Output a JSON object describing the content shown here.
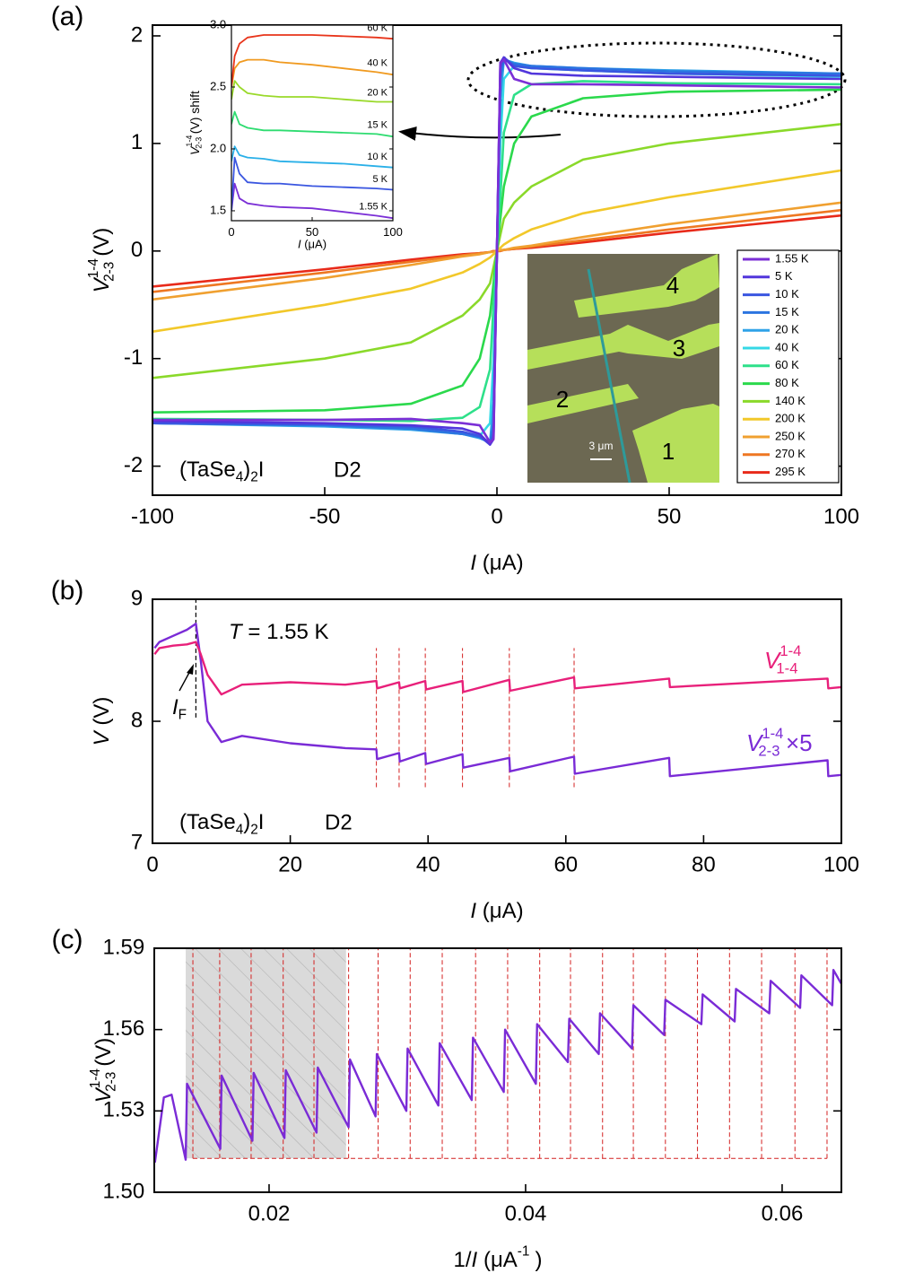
{
  "chart_data": [
    {
      "type": "line",
      "panel_label": "(a)",
      "xlabel": {
        "symbol": "I",
        "unit": "(μA)"
      },
      "ylabel": {
        "symbol": "V",
        "sup": "1-4",
        "sub": "2-3",
        "unit": "(V)"
      },
      "sample": {
        "t1": "(TaSe",
        "sub": "4",
        "t2": ")",
        "sub2": "2",
        "t3": "I"
      },
      "device": "D2",
      "contacts": [
        "1",
        "2",
        "3",
        "4"
      ],
      "scale_bar": "3 μm",
      "xlim": [
        -100,
        100
      ],
      "ylim": [
        -2.27,
        2.1
      ],
      "xticks": [
        -100,
        -50,
        0,
        50,
        100
      ],
      "yticks": [
        -2,
        -1,
        0,
        1,
        2
      ],
      "x": [
        -100,
        -50,
        -25,
        -10,
        -5,
        -2,
        -1,
        0,
        1,
        2,
        5,
        10,
        25,
        50,
        100
      ],
      "series": [
        {
          "name": "1.55 K",
          "color": "#7b2fd6",
          "values": [
            -1.57,
            -1.57,
            -1.56,
            -1.6,
            -1.62,
            -1.78,
            -1.75,
            0,
            1.75,
            1.78,
            1.6,
            1.55,
            1.55,
            1.54,
            1.52
          ]
        },
        {
          "name": "5 K",
          "color": "#5236dc",
          "values": [
            -1.58,
            -1.6,
            -1.62,
            -1.65,
            -1.7,
            -1.8,
            -1.75,
            0,
            1.75,
            1.8,
            1.7,
            1.65,
            1.63,
            1.62,
            1.6
          ]
        },
        {
          "name": "10 K",
          "color": "#3a56e0",
          "values": [
            -1.6,
            -1.61,
            -1.63,
            -1.68,
            -1.72,
            -1.8,
            -1.7,
            0,
            1.7,
            1.8,
            1.72,
            1.7,
            1.68,
            1.65,
            1.63
          ]
        },
        {
          "name": "15 K",
          "color": "#2b74e0",
          "values": [
            -1.6,
            -1.62,
            -1.65,
            -1.7,
            -1.73,
            -1.78,
            -1.6,
            0,
            1.6,
            1.78,
            1.74,
            1.72,
            1.7,
            1.67,
            1.65
          ]
        },
        {
          "name": "20 K",
          "color": "#2fa2e8",
          "values": [
            -1.6,
            -1.63,
            -1.66,
            -1.7,
            -1.74,
            -1.78,
            -1.4,
            0,
            1.4,
            1.78,
            1.75,
            1.72,
            1.7,
            1.68,
            1.65
          ]
        },
        {
          "name": "40 K",
          "color": "#35d8e6",
          "values": [
            -1.6,
            -1.62,
            -1.65,
            -1.7,
            -1.72,
            -1.6,
            -1.0,
            0,
            1.0,
            1.6,
            1.72,
            1.7,
            1.68,
            1.65,
            1.62
          ]
        },
        {
          "name": "60 K",
          "color": "#2ee08a",
          "values": [
            -1.56,
            -1.57,
            -1.58,
            -1.55,
            -1.45,
            -1.1,
            -0.5,
            0,
            0.5,
            1.1,
            1.45,
            1.55,
            1.58,
            1.56,
            1.55
          ]
        },
        {
          "name": "80 K",
          "color": "#2bd94c",
          "values": [
            -1.5,
            -1.48,
            -1.42,
            -1.25,
            -1.0,
            -0.6,
            -0.3,
            0,
            0.3,
            0.6,
            1.0,
            1.25,
            1.42,
            1.48,
            1.5
          ]
        },
        {
          "name": "140 K",
          "color": "#8ad92a",
          "values": [
            -1.18,
            -1.0,
            -0.85,
            -0.6,
            -0.45,
            -0.3,
            -0.15,
            0,
            0.15,
            0.3,
            0.45,
            0.6,
            0.85,
            1.0,
            1.18
          ]
        },
        {
          "name": "200 K",
          "color": "#f2c82a",
          "values": [
            -0.75,
            -0.5,
            -0.35,
            -0.2,
            -0.12,
            -0.06,
            -0.03,
            0,
            0.03,
            0.06,
            0.12,
            0.2,
            0.35,
            0.5,
            0.75
          ]
        },
        {
          "name": "250 K",
          "color": "#f0a030",
          "values": [
            -0.45,
            -0.25,
            -0.13,
            -0.05,
            -0.03,
            -0.01,
            -0.01,
            0,
            0.01,
            0.01,
            0.03,
            0.05,
            0.13,
            0.25,
            0.45
          ]
        },
        {
          "name": "270 K",
          "color": "#ee7722",
          "values": [
            -0.38,
            -0.2,
            -0.1,
            -0.04,
            -0.02,
            -0.01,
            0,
            0,
            0,
            0.01,
            0.02,
            0.04,
            0.1,
            0.2,
            0.38
          ]
        },
        {
          "name": "295 K",
          "color": "#e82a1a",
          "values": [
            -0.33,
            -0.17,
            -0.08,
            -0.03,
            -0.02,
            -0.01,
            0,
            0,
            0,
            0.01,
            0.02,
            0.03,
            0.08,
            0.17,
            0.33
          ]
        }
      ]
    },
    {
      "type": "line",
      "xlabel": {
        "symbol": "I",
        "unit": "(μA)"
      },
      "ylabel": {
        "symbol": "V",
        "sup": "1-4",
        "sub": "2-3",
        "unit": "(V) shift"
      },
      "xlim": [
        0,
        100
      ],
      "ylim": [
        1.42,
        3.0
      ],
      "xticks": [
        0,
        50,
        100
      ],
      "yticks": [
        1.5,
        {
          "value": 2,
          "label": "2.0"
        },
        2.5,
        {
          "value": 3,
          "label": "3.0"
        }
      ],
      "x": [
        0,
        2,
        5,
        10,
        20,
        30,
        50,
        70,
        90,
        100
      ],
      "series": [
        {
          "name": "60 K",
          "color": "#e8341a",
          "values": [
            2.5,
            2.75,
            2.85,
            2.9,
            2.92,
            2.92,
            2.92,
            2.91,
            2.9,
            2.89
          ]
        },
        {
          "name": "40 K",
          "color": "#f09a20",
          "values": [
            2.5,
            2.65,
            2.7,
            2.72,
            2.72,
            2.7,
            2.68,
            2.65,
            2.62,
            2.6
          ]
        },
        {
          "name": "20 K",
          "color": "#9ad92a",
          "values": [
            2.4,
            2.55,
            2.5,
            2.45,
            2.43,
            2.42,
            2.42,
            2.4,
            2.38,
            2.38
          ]
        },
        {
          "name": "15 K",
          "color": "#2edc70",
          "values": [
            2.2,
            2.3,
            2.2,
            2.17,
            2.15,
            2.15,
            2.14,
            2.13,
            2.12,
            2.1
          ]
        },
        {
          "name": "10 K",
          "color": "#2ab0e8",
          "values": [
            1.9,
            2.02,
            1.95,
            1.93,
            1.92,
            1.9,
            1.89,
            1.88,
            1.86,
            1.85
          ]
        },
        {
          "name": "5 K",
          "color": "#3a56e0",
          "values": [
            1.5,
            1.93,
            1.8,
            1.73,
            1.72,
            1.72,
            1.7,
            1.69,
            1.68,
            1.67
          ]
        },
        {
          "name": "1.55 K",
          "color": "#7b2fd6",
          "values": [
            1.5,
            1.72,
            1.6,
            1.56,
            1.54,
            1.53,
            1.52,
            1.49,
            1.46,
            1.44
          ]
        }
      ]
    },
    {
      "type": "line",
      "panel_label": "(b)",
      "xlabel": {
        "symbol": "I",
        "unit": "(μA)"
      },
      "ylabel": {
        "symbol": "V",
        "unit": "(V)"
      },
      "temperature": {
        "symbol": "T",
        "t": "= 1.55 K"
      },
      "if_label": {
        "symbol": "I",
        "sub": "F"
      },
      "sample": {
        "t1": "(TaSe",
        "sub": "4",
        "t2": ")",
        "sub2": "2",
        "t3": "I"
      },
      "device": "D2",
      "xlim": [
        0,
        100
      ],
      "ylim": [
        7,
        9
      ],
      "xticks": [
        0,
        20,
        40,
        60,
        80,
        100
      ],
      "yticks": [
        7,
        8,
        9
      ],
      "if_marker": 6.3,
      "if_span": [
        8.03,
        9
      ],
      "jump_markers": [
        32.5,
        35.8,
        39.6,
        45,
        51.8,
        61.2
      ],
      "marker_span": [
        7.46,
        8.6
      ],
      "x": [
        0.3,
        1,
        3,
        5,
        6.3,
        7,
        8,
        10,
        13,
        20,
        28,
        32.5,
        32.6,
        35.8,
        35.9,
        39.6,
        39.7,
        45,
        45.1,
        51.8,
        51.9,
        61.2,
        61.3,
        75,
        75.1,
        98,
        98.1,
        100
      ],
      "series": [
        {
          "name": {
            "symbol": "V",
            "sup": "1-4",
            "sub": "1-4"
          },
          "color": "#e8207a",
          "values": [
            8.55,
            8.6,
            8.62,
            8.63,
            8.65,
            8.55,
            8.38,
            8.22,
            8.3,
            8.32,
            8.3,
            8.33,
            8.27,
            8.32,
            8.27,
            8.33,
            8.26,
            8.33,
            8.24,
            8.34,
            8.25,
            8.36,
            8.27,
            8.35,
            8.28,
            8.35,
            8.27,
            8.28
          ]
        },
        {
          "name": {
            "symbol": "V",
            "sup": "1-4",
            "sub": "2-3",
            "suffix": "×5"
          },
          "color": "#7a2bd6",
          "values": [
            8.6,
            8.65,
            8.7,
            8.75,
            8.8,
            8.5,
            8.0,
            7.83,
            7.88,
            7.82,
            7.78,
            7.77,
            7.69,
            7.74,
            7.67,
            7.74,
            7.65,
            7.73,
            7.62,
            7.7,
            7.59,
            7.71,
            7.57,
            7.7,
            7.55,
            7.68,
            7.55,
            7.56
          ]
        }
      ]
    },
    {
      "type": "line",
      "panel_label": "(c)",
      "xlabel": {
        "t1": "1/",
        "symbol": "I",
        "unit": "(μA",
        "unit_sup": "-1",
        "unit_end": ")"
      },
      "ylabel": {
        "symbol": "V",
        "sup": "1-4",
        "sub": "2-3",
        "unit": "(V)"
      },
      "xlim": [
        0.01105,
        0.06462
      ],
      "ylim": [
        1.5,
        1.59
      ],
      "xticks": [
        0.02,
        0.04,
        0.06
      ],
      "yticks": [
        {
          "value": 1.5,
          "label": "1.50"
        },
        1.53,
        1.56,
        1.59
      ],
      "shaded_xlim": [
        0.0135,
        0.026
      ],
      "dashed_x": [
        0.01406,
        0.01615,
        0.0186,
        0.0211,
        0.0235,
        0.0262,
        0.0285,
        0.031,
        0.0335,
        0.0361,
        0.0386,
        0.0411,
        0.0435,
        0.046,
        0.0484,
        0.0509,
        0.0534,
        0.0559,
        0.0584,
        0.061,
        0.0635
      ],
      "box_span": [
        1.5125,
        1.59
      ],
      "x": [
        0.0111,
        0.0118,
        0.0124,
        0.0135,
        0.0136,
        0.0162,
        0.0163,
        0.0187,
        0.0188,
        0.0212,
        0.0213,
        0.0237,
        0.0238,
        0.0262,
        0.0263,
        0.0283,
        0.0284,
        0.0307,
        0.0308,
        0.0332,
        0.0333,
        0.0358,
        0.0359,
        0.0383,
        0.0384,
        0.0408,
        0.0409,
        0.0433,
        0.0434,
        0.0457,
        0.0458,
        0.0483,
        0.0484,
        0.0508,
        0.0509,
        0.0537,
        0.0538,
        0.0563,
        0.0564,
        0.059,
        0.0591,
        0.0614,
        0.0615,
        0.0639,
        0.064,
        0.0646
      ],
      "series": [
        {
          "name": "V",
          "color": "#7a2bd6",
          "values": [
            1.511,
            1.535,
            1.536,
            1.512,
            1.54,
            1.516,
            1.543,
            1.519,
            1.544,
            1.52,
            1.545,
            1.522,
            1.546,
            1.524,
            1.549,
            1.528,
            1.551,
            1.53,
            1.553,
            1.532,
            1.555,
            1.534,
            1.557,
            1.537,
            1.56,
            1.54,
            1.562,
            1.548,
            1.564,
            1.551,
            1.566,
            1.553,
            1.569,
            1.558,
            1.571,
            1.562,
            1.573,
            1.563,
            1.575,
            1.566,
            1.578,
            1.568,
            1.58,
            1.569,
            1.582,
            1.577
          ]
        }
      ]
    }
  ]
}
